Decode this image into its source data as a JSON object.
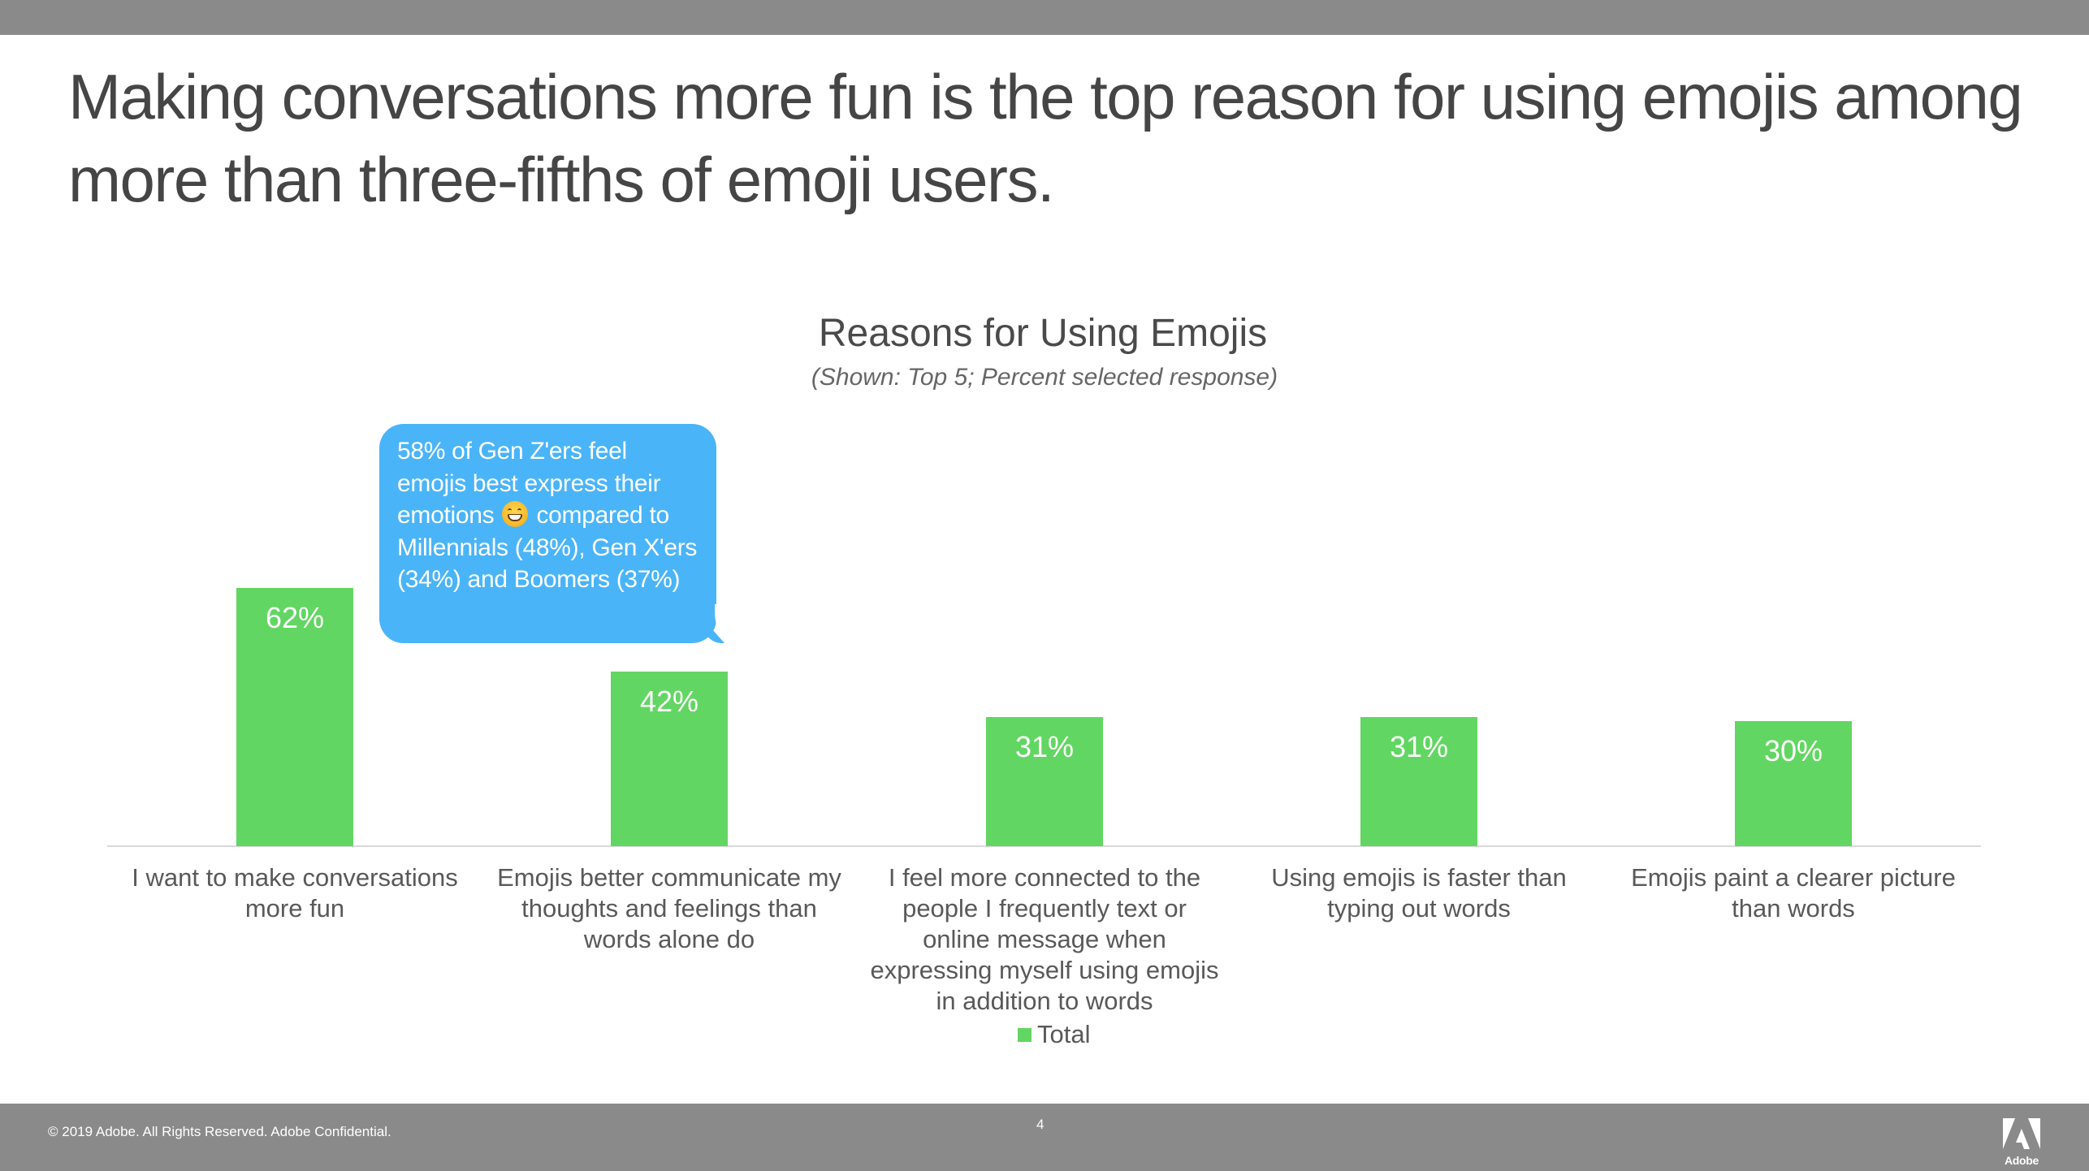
{
  "slide": {
    "title": "Making conversations more fun is the top reason for using emojis among more than three-fifths of emoji users.",
    "page_number": "4",
    "footer_copyright": "© 2019 Adobe.  All Rights Reserved.  Adobe Confidential.",
    "logo_text": "Adobe"
  },
  "callout": {
    "text_before_emoji": "58% of Gen Z'ers feel emojis best express their emotions",
    "emoji": "grinning-face-with-smiling-eyes",
    "text_after_emoji": "compared to Millennials (48%), Gen X'ers (34%) and Boomers (37%)"
  },
  "colors": {
    "bar": "#62d662",
    "callout": "#4ab4f8",
    "header_footer": "#8a8a8a"
  },
  "chart_data": {
    "type": "bar",
    "title": "Reasons for Using Emojis",
    "subtitle": "(Shown: Top 5; Percent selected response)",
    "categories": [
      "I want to make conversations more fun",
      "Emojis better communicate my thoughts and feelings than words alone do",
      "I feel more connected to the people I frequently text or online message when expressing myself using emojis in addition to words",
      "Using emojis is faster than typing out words",
      "Emojis paint a clearer picture than words"
    ],
    "series": [
      {
        "name": "Total",
        "values": [
          62,
          42,
          31,
          31,
          30
        ]
      }
    ],
    "value_labels": [
      "62%",
      "42%",
      "31%",
      "31%",
      "30%"
    ],
    "xlabel": "",
    "ylabel": "",
    "ylim": [
      0,
      70
    ],
    "grid": false,
    "legend": {
      "position": "bottom",
      "entries": [
        "Total"
      ]
    }
  }
}
